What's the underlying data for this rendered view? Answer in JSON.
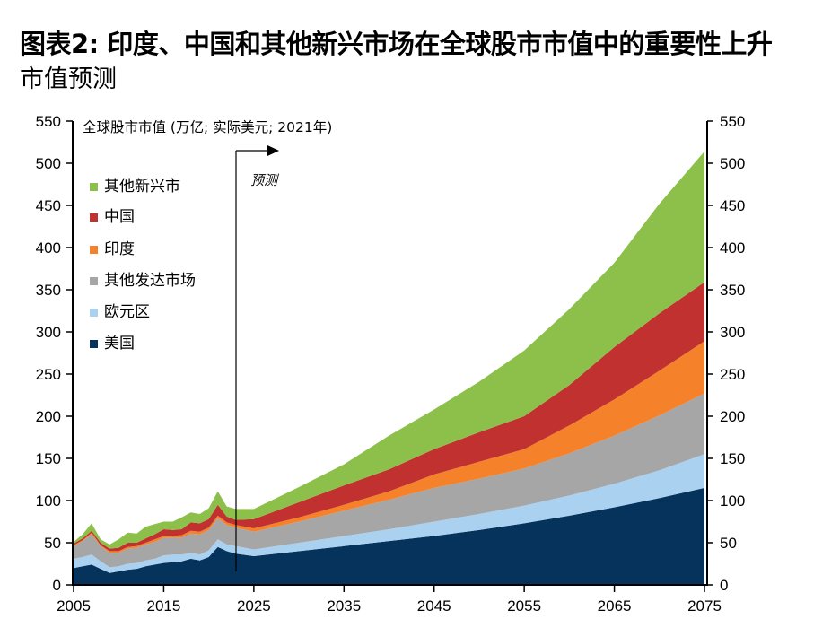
{
  "header": {
    "title": "图表2: 印度、中国和其他新兴市场在全球股市市值中的重要性上升",
    "subtitle": "市值预测"
  },
  "chart_data": {
    "type": "area",
    "stacked": true,
    "title": "图表2: 印度、中国和其他新兴市场在全球股市市值中的重要性上升",
    "subtitle": "市值预测",
    "unit_label": "全球股市市值 (万亿; 实际美元; 2021年)",
    "xlabel": "",
    "ylabel": "",
    "xlim": [
      2005,
      2075
    ],
    "ylim": [
      0,
      550
    ],
    "x_ticks": [
      "2005",
      "2015",
      "2025",
      "2035",
      "2045",
      "2055",
      "2065",
      "2075"
    ],
    "x_tick_values": [
      2005,
      2015,
      2025,
      2035,
      2045,
      2055,
      2065,
      2075
    ],
    "y_ticks": [
      "0",
      "50",
      "100",
      "150",
      "200",
      "250",
      "300",
      "350",
      "400",
      "450",
      "500",
      "550"
    ],
    "y_tick_values": [
      0,
      50,
      100,
      150,
      200,
      250,
      300,
      350,
      400,
      450,
      500,
      550
    ],
    "dual_y_axis": true,
    "grid": false,
    "legend_position": "top-left",
    "annotation": {
      "label": "预测",
      "x": 2023,
      "arrow": "right"
    },
    "x": [
      2005,
      2006,
      2007,
      2008,
      2009,
      2010,
      2011,
      2012,
      2013,
      2014,
      2015,
      2016,
      2017,
      2018,
      2019,
      2020,
      2021,
      2022,
      2023,
      2025,
      2030,
      2035,
      2040,
      2045,
      2050,
      2055,
      2060,
      2065,
      2070,
      2075
    ],
    "series": [
      {
        "name": "美国",
        "color": "#05335c",
        "values": [
          20,
          22,
          24,
          19,
          14,
          16,
          18,
          19,
          22,
          24,
          26,
          27,
          28,
          31,
          29,
          33,
          45,
          40,
          37,
          34,
          40,
          46,
          52,
          58,
          65,
          73,
          82,
          92,
          103,
          115
        ]
      },
      {
        "name": "欧元区",
        "color": "#abd1f0",
        "values": [
          11,
          11,
          12,
          9,
          7,
          6,
          7,
          7,
          7,
          7,
          9,
          9,
          8,
          7,
          7,
          8,
          9,
          8,
          9,
          8,
          10,
          12,
          14,
          17,
          19,
          21,
          24,
          28,
          33,
          40
        ]
      },
      {
        "name": "其他发达市场",
        "color": "#a6a6a6",
        "values": [
          15,
          19,
          24,
          18,
          17,
          16,
          18,
          18,
          19,
          20,
          21,
          20,
          20,
          23,
          24,
          24,
          25,
          23,
          22,
          21,
          25,
          30,
          35,
          40,
          42,
          44,
          50,
          57,
          65,
          72
        ]
      },
      {
        "name": "印度",
        "color": "#f5822a",
        "values": [
          1,
          1,
          2,
          1,
          2,
          2,
          2,
          2,
          2,
          3,
          2,
          2,
          3,
          3,
          3,
          3,
          3,
          3,
          3,
          4,
          5,
          7,
          10,
          16,
          20,
          23,
          33,
          43,
          53,
          62
        ]
      },
      {
        "name": "中国",
        "color": "#c0312f",
        "values": [
          2,
          2,
          2,
          3,
          3,
          4,
          5,
          4,
          5,
          6,
          8,
          7,
          7,
          10,
          10,
          10,
          13,
          7,
          6,
          11,
          18,
          23,
          26,
          30,
          35,
          39,
          48,
          62,
          68,
          70
        ]
      },
      {
        "name": "其他新兴市",
        "color": "#8cc04b",
        "values": [
          2,
          5,
          9,
          4,
          5,
          10,
          12,
          11,
          14,
          12,
          9,
          10,
          14,
          12,
          11,
          13,
          16,
          12,
          13,
          12,
          18,
          25,
          40,
          47,
          60,
          78,
          90,
          100,
          130,
          155
        ]
      }
    ]
  },
  "legend": {
    "items": [
      {
        "label": "其他新兴市",
        "color": "#8cc04b"
      },
      {
        "label": "中国",
        "color": "#c0312f"
      },
      {
        "label": "印度",
        "color": "#f5822a"
      },
      {
        "label": "其他发达市场",
        "color": "#a6a6a6"
      },
      {
        "label": "欧元区",
        "color": "#abd1f0"
      },
      {
        "label": "美国",
        "color": "#05335c"
      }
    ]
  }
}
